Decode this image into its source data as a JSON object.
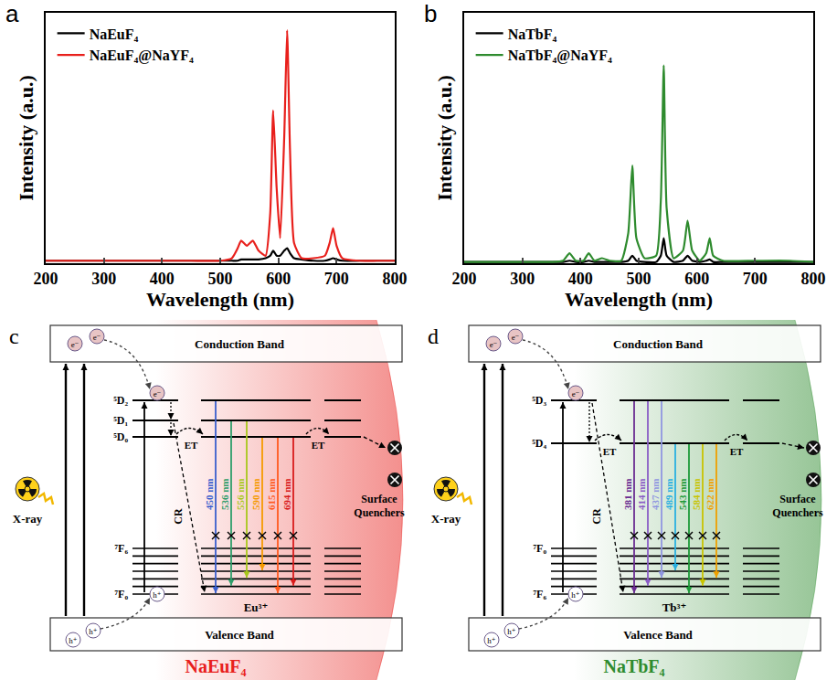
{
  "chart_data": [
    {
      "panel": "a",
      "type": "line",
      "x_label": "Wavelength (nm)",
      "y_label": "Intensity (a.u.)",
      "xlim": [
        200,
        800
      ],
      "xticks": [
        200,
        300,
        400,
        500,
        600,
        700,
        800
      ],
      "ylim": [
        0,
        1
      ],
      "tick_labels": "x",
      "grid": false,
      "legend": "upper left",
      "x": [
        200,
        250,
        300,
        350,
        400,
        450,
        500,
        520,
        530,
        536,
        546,
        556,
        566,
        578,
        586,
        591,
        597,
        603,
        610,
        615,
        620,
        627,
        640,
        660,
        680,
        688,
        694,
        700,
        710,
        740,
        770,
        800
      ],
      "series": [
        {
          "name": "NaEuF₄",
          "color": "#000000",
          "values": [
            0.01,
            0.01,
            0.01,
            0.01,
            0.01,
            0.01,
            0.01,
            0.01,
            0.01,
            0.015,
            0.015,
            0.015,
            0.015,
            0.02,
            0.03,
            0.05,
            0.03,
            0.03,
            0.05,
            0.06,
            0.04,
            0.02,
            0.015,
            0.01,
            0.01,
            0.015,
            0.02,
            0.015,
            0.01,
            0.01,
            0.01,
            0.01
          ]
        },
        {
          "name": "NaEuF₄@NaYF₄",
          "color": "#e8201c",
          "values": [
            0.01,
            0.01,
            0.01,
            0.01,
            0.01,
            0.01,
            0.01,
            0.02,
            0.06,
            0.09,
            0.07,
            0.09,
            0.05,
            0.03,
            0.2,
            0.61,
            0.3,
            0.1,
            0.5,
            0.93,
            0.45,
            0.08,
            0.02,
            0.02,
            0.03,
            0.08,
            0.14,
            0.07,
            0.02,
            0.01,
            0.01,
            0.01
          ]
        }
      ]
    },
    {
      "panel": "b",
      "type": "line",
      "x_label": "Wavelength (nm)",
      "y_label": "Intensity (a.u.)",
      "xlim": [
        200,
        800
      ],
      "xticks": [
        200,
        300,
        400,
        500,
        600,
        700,
        800
      ],
      "ylim": [
        0,
        1
      ],
      "tick_labels": "x",
      "grid": false,
      "legend": "upper left",
      "x": [
        200,
        250,
        300,
        350,
        370,
        381,
        392,
        405,
        414,
        424,
        437,
        450,
        470,
        482,
        489,
        496,
        510,
        530,
        538,
        543,
        548,
        560,
        576,
        584,
        592,
        605,
        616,
        622,
        628,
        645,
        700,
        760,
        800
      ],
      "series": [
        {
          "name": "NaTbF₄",
          "color": "#000000",
          "values": [
            0.005,
            0.005,
            0.005,
            0.005,
            0.005,
            0.01,
            0.005,
            0.005,
            0.01,
            0.005,
            0.005,
            0.005,
            0.005,
            0.01,
            0.03,
            0.01,
            0.005,
            0.005,
            0.03,
            0.1,
            0.03,
            0.005,
            0.01,
            0.03,
            0.01,
            0.005,
            0.01,
            0.015,
            0.005,
            0.005,
            0.005,
            0.005,
            0.005
          ]
        },
        {
          "name": "NaTbF₄@NaYF₄",
          "color": "#2e8b2e",
          "values": [
            0.005,
            0.005,
            0.005,
            0.005,
            0.01,
            0.04,
            0.01,
            0.01,
            0.04,
            0.01,
            0.02,
            0.01,
            0.01,
            0.12,
            0.39,
            0.1,
            0.02,
            0.03,
            0.25,
            0.79,
            0.22,
            0.02,
            0.05,
            0.17,
            0.05,
            0.01,
            0.04,
            0.1,
            0.03,
            0.01,
            0.01,
            0.01,
            0.005
          ]
        }
      ]
    }
  ],
  "diagrams": [
    {
      "panel": "c",
      "title": "NaEuF₄",
      "color": "#e8201c",
      "conduction_band": "Conduction Band",
      "valence_band": "Valence Band",
      "excitation": "X-ray",
      "quenchers": "Surface Quenchers",
      "cross_relaxation": "CR",
      "energy_transfer": "ET",
      "electron": "e⁻",
      "hole": "h⁺",
      "ion": "Eu³⁺",
      "excited_levels": [
        "⁵D₂",
        "⁵D₁",
        "⁵D₀"
      ],
      "ground_levels": [
        "⁷F₆",
        "⁷F₀"
      ],
      "emissions": [
        {
          "label": "450 nm",
          "color": "#3a5fcd",
          "from": 0
        },
        {
          "label": "536 nm",
          "color": "#2e9d6a",
          "from": 1
        },
        {
          "label": "556 nm",
          "color": "#a8c81c",
          "from": 1
        },
        {
          "label": "590 nm",
          "color": "#f59a00",
          "from": 2
        },
        {
          "label": "615 nm",
          "color": "#ff5a1f",
          "from": 2
        },
        {
          "label": "694 nm",
          "color": "#d81b1b",
          "from": 2
        }
      ]
    },
    {
      "panel": "d",
      "title": "NaTbF₄",
      "color": "#2e8b2e",
      "conduction_band": "Conduction Band",
      "valence_band": "Valence Band",
      "excitation": "X-ray",
      "quenchers": "Surface Quenchers",
      "cross_relaxation": "CR",
      "energy_transfer": "ET",
      "electron": "e⁻",
      "hole": "h⁺",
      "ion": "Tb³⁺",
      "excited_levels": [
        "⁵D₃",
        "⁵D₄"
      ],
      "ground_levels": [
        "⁷F₀",
        "⁷F₆"
      ],
      "emissions": [
        {
          "label": "381 nm",
          "color": "#6a2c91",
          "from": 0
        },
        {
          "label": "414 nm",
          "color": "#8a5cc6",
          "from": 0
        },
        {
          "label": "437 nm",
          "color": "#8f96e0",
          "from": 0
        },
        {
          "label": "489 nm",
          "color": "#2ab0e0",
          "from": 1
        },
        {
          "label": "543 nm",
          "color": "#1f9a3a",
          "from": 1
        },
        {
          "label": "584 nm",
          "color": "#c8c400",
          "from": 1
        },
        {
          "label": "622 nm",
          "color": "#f0a000",
          "from": 1
        }
      ]
    }
  ]
}
